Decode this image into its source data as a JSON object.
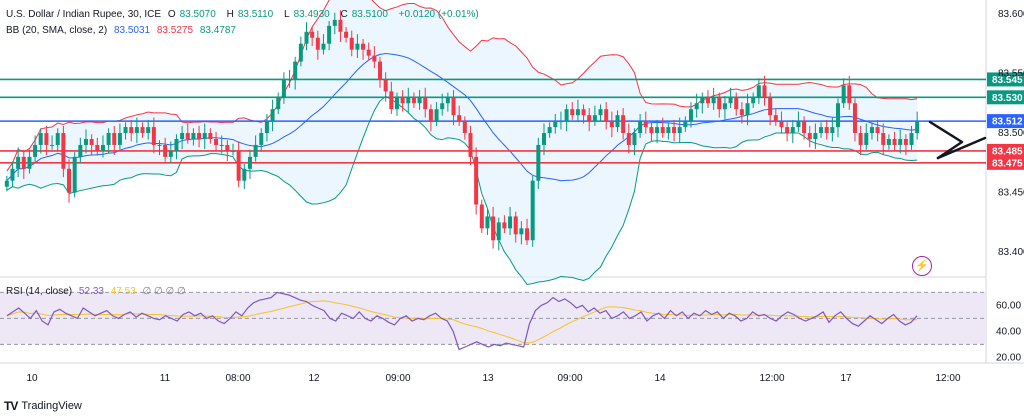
{
  "header": {
    "symbol": "U.S. Dollar / Indian Rupee, 30, ICE",
    "ohlc": [
      {
        "k": "O",
        "v": "83.5070"
      },
      {
        "k": "H",
        "v": "83.5110"
      },
      {
        "k": "L",
        "v": "83.4930"
      },
      {
        "k": "C",
        "v": "83.5100"
      }
    ],
    "change": "+0.0120 (+0.01%)",
    "bb_label": "BB (20, SMA, close, 2)",
    "bb_basis": "83.5031",
    "bb_upper": "83.5275",
    "bb_lower": "83.4787"
  },
  "rsi_header": {
    "label": "RSI (14, close)",
    "value": "52.33",
    "ma": "47.53",
    "extra": "∅ ∅ ∅ ∅"
  },
  "brand": {
    "name": "TradingView",
    "mark": "TV"
  },
  "colors": {
    "up": "#089981",
    "down": "#f23645",
    "basis": "#2962ff",
    "upper": "#f23645",
    "lower": "#089981",
    "band_fill": "#e3f2fd",
    "rsi": "#7e57c2",
    "rsi_ma": "#f7c325",
    "rsi_band": "#ede7f6",
    "level_green": "#089981",
    "level_blue": "#2962ff",
    "level_red": "#f23645"
  },
  "chart_data": {
    "type": "candlestick",
    "y_range": [
      83.38,
      83.61
    ],
    "y_ticks": [
      "83.600",
      "83.550",
      "83.500",
      "83.450",
      "83.400"
    ],
    "x_ticks": [
      "10",
      "11",
      "08:00",
      "12",
      "09:00",
      "13",
      "09:00",
      "14",
      "12:00",
      "17",
      "12:00"
    ],
    "levels": [
      {
        "value": 83.545,
        "label": "83.545",
        "color": "#089981"
      },
      {
        "value": 83.53,
        "label": "83.530",
        "color": "#089981"
      },
      {
        "value": 83.51,
        "label": "83.512",
        "color": "#2962ff"
      },
      {
        "value": 83.485,
        "label": "83.485",
        "color": "#f23645"
      },
      {
        "value": 83.475,
        "label": "83.475",
        "color": "#f23645"
      }
    ],
    "closes": [
      83.46,
      83.47,
      83.48,
      83.47,
      83.48,
      83.49,
      83.5,
      83.49,
      83.49,
      83.5,
      83.47,
      83.45,
      83.48,
      83.49,
      83.495,
      83.49,
      83.485,
      83.49,
      83.5,
      83.49,
      83.5,
      83.505,
      83.5,
      83.505,
      83.5,
      83.505,
      83.49,
      83.49,
      83.48,
      83.485,
      83.495,
      83.5,
      83.495,
      83.5,
      83.495,
      83.5,
      83.495,
      83.49,
      83.49,
      83.485,
      83.485,
      83.46,
      83.47,
      83.48,
      83.49,
      83.5,
      83.51,
      83.52,
      83.53,
      83.545,
      83.545,
      83.56,
      83.575,
      83.585,
      83.58,
      83.57,
      83.575,
      83.59,
      83.595,
      83.585,
      83.58,
      83.57,
      83.575,
      83.57,
      83.565,
      83.56,
      83.545,
      83.535,
      83.52,
      83.53,
      83.525,
      83.53,
      83.525,
      83.53,
      83.52,
      83.51,
      83.52,
      83.525,
      83.53,
      83.515,
      83.51,
      83.5,
      83.48,
      83.44,
      83.42,
      83.43,
      83.41,
      83.425,
      83.42,
      83.43,
      83.415,
      83.42,
      83.41,
      83.46,
      83.49,
      83.5,
      83.505,
      83.51,
      83.51,
      83.52,
      83.515,
      83.52,
      83.515,
      83.51,
      83.515,
      83.52,
      83.51,
      83.505,
      83.515,
      83.5,
      83.49,
      83.5,
      83.51,
      83.505,
      83.5,
      83.505,
      83.5,
      83.505,
      83.5,
      83.505,
      83.51,
      83.52,
      83.525,
      83.53,
      83.525,
      83.53,
      83.52,
      83.525,
      83.53,
      83.52,
      83.515,
      83.525,
      83.53,
      83.54,
      83.53,
      83.515,
      83.51,
      83.505,
      83.5,
      83.505,
      83.51,
      83.5,
      83.495,
      83.5,
      83.505,
      83.5,
      83.505,
      83.525,
      83.54,
      83.525,
      83.5,
      83.49,
      83.5,
      83.505,
      83.5,
      83.49,
      83.495,
      83.49,
      83.495,
      83.49,
      83.5,
      83.51
    ],
    "rsi": {
      "levels": [
        70,
        50,
        30
      ],
      "ticks": [
        "60.00",
        "40.00",
        "20.00"
      ],
      "y_range": [
        18,
        78
      ],
      "values": [
        52,
        55,
        58,
        54,
        50,
        56,
        48,
        45,
        55,
        57,
        54,
        52,
        50,
        58,
        55,
        52,
        54,
        56,
        52,
        50,
        53,
        55,
        51,
        54,
        52,
        50,
        49,
        52,
        50,
        48,
        53,
        55,
        52,
        54,
        50,
        52,
        48,
        46,
        50,
        55,
        52,
        58,
        62,
        64,
        65,
        66,
        70,
        69,
        68,
        66,
        64,
        63,
        60,
        58,
        56,
        50,
        48,
        54,
        52,
        50,
        55,
        50,
        48,
        52,
        50,
        47,
        45,
        50,
        52,
        48,
        50,
        49,
        52,
        54,
        50,
        48,
        40,
        26,
        28,
        30,
        32,
        30,
        28,
        30,
        29,
        31,
        30,
        29,
        28,
        46,
        56,
        60,
        62,
        66,
        63,
        65,
        62,
        58,
        60,
        55,
        58,
        54,
        56,
        50,
        52,
        55,
        50,
        52,
        55,
        48,
        52,
        54,
        50,
        56,
        52,
        55,
        50,
        54,
        52,
        56,
        53,
        55,
        50,
        54,
        52,
        48,
        50,
        55,
        52,
        53,
        50,
        48,
        52,
        55,
        53,
        50,
        48,
        50,
        52,
        55,
        47,
        52,
        55,
        50,
        46,
        44,
        48,
        52,
        49,
        46,
        50,
        53,
        48,
        45,
        47,
        52
      ]
    }
  }
}
